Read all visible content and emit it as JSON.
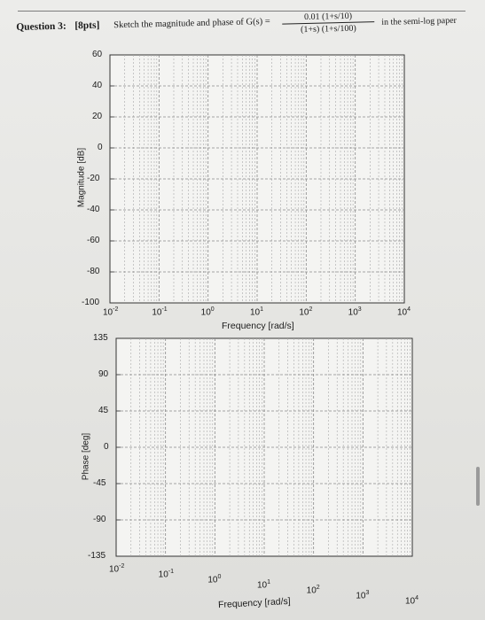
{
  "question": {
    "label": "Question 3:",
    "points": "[8pts]",
    "text": "Sketch the magnitude and phase of G(s) =",
    "numerator": "0.01 (1+s/10)",
    "denominator": "(1+s) (1+s/100)",
    "tail": "in the semi-log paper"
  },
  "magnitude_plot": {
    "ylabel": "Magnitude [dB]",
    "xlabel": "Frequency [rad/s]",
    "yticks": [
      "60",
      "40",
      "20",
      "0",
      "-20",
      "-40",
      "-60",
      "-80",
      "-100"
    ],
    "xtick_bases": [
      "10",
      "10",
      "10",
      "10",
      "10",
      "10",
      "10"
    ],
    "xtick_exponents": [
      "-2",
      "-1",
      "0",
      "1",
      "2",
      "3",
      "4"
    ]
  },
  "phase_plot": {
    "ylabel": "Phase [deg]",
    "xlabel": "Frequency [rad/s]",
    "yticks": [
      "135",
      "90",
      "45",
      "0",
      "-45",
      "-90",
      "-135"
    ],
    "xtick_bases": [
      "10",
      "10",
      "10",
      "10",
      "10",
      "10",
      "10"
    ],
    "xtick_exponents": [
      "-2",
      "-1",
      "0",
      "1",
      "2",
      "3",
      "4"
    ]
  }
}
